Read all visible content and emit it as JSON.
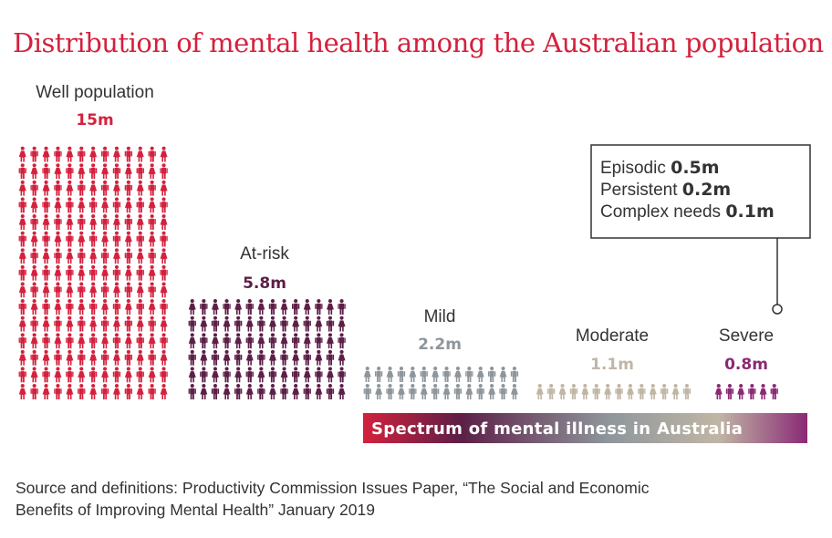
{
  "chart_data": {
    "type": "pictogram",
    "title": "Distribution of mental health among the Australian population",
    "categories": [
      "Well population",
      "At-risk",
      "Mild",
      "Moderate",
      "Severe"
    ],
    "values_text": [
      "15m",
      "5.8m",
      "2.2m",
      "1.1m",
      "0.8m"
    ],
    "values": [
      15,
      5.8,
      2.2,
      1.1,
      0.8
    ],
    "unit": "million people",
    "colors": [
      "#d4213d",
      "#5c1f47",
      "#8e969b",
      "#c0b6a5",
      "#8a2a75"
    ],
    "severe_breakdown": [
      {
        "label": "Episodic",
        "value_text": "0.5m",
        "value": 0.5
      },
      {
        "label": "Persistent",
        "value_text": "0.2m",
        "value": 0.2
      },
      {
        "label": "Complex needs",
        "value_text": "0.1m",
        "value": 0.1
      }
    ],
    "spectrum_label": "Spectrum of mental illness in Australia",
    "spectrum_colors": [
      "#d4213d",
      "#5c1f47",
      "#8e969b",
      "#c0b6a5",
      "#8a2a75"
    ]
  },
  "source_lines": [
    "Source and definitions: Productivity Commission Issues Paper, “The Social and Economic",
    "Benefits of Improving Mental Health” January 2019"
  ]
}
